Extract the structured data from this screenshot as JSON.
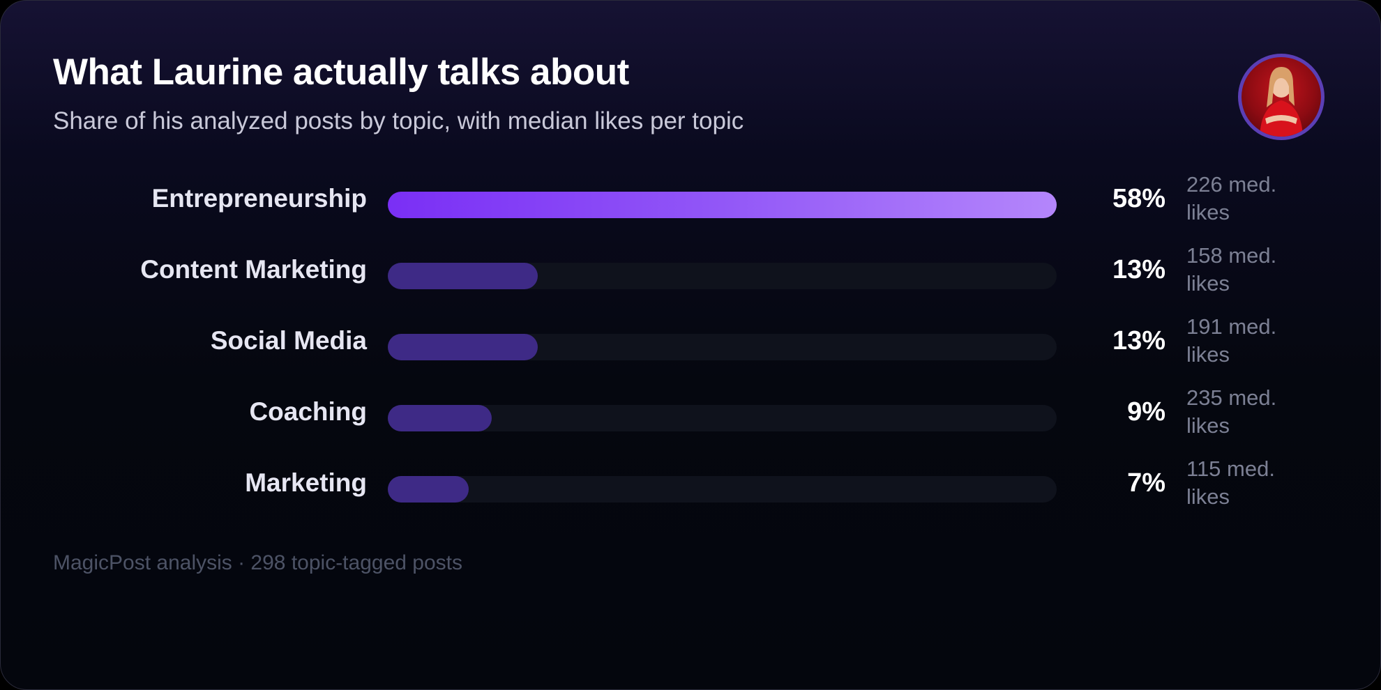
{
  "header": {
    "title": "What Laurine actually talks about",
    "subtitle": "Share of his analyzed posts by topic, with median likes per topic"
  },
  "avatar": {
    "icon": "profile-photo-icon",
    "ring_color": "#5b3fb5",
    "background_color": "#c2141c"
  },
  "colors": {
    "lead_bar_start": "#7a2ff5",
    "lead_bar_end": "#b486fb",
    "other_bar": "#3e2a86",
    "track": "#0f121c"
  },
  "chart_data": {
    "type": "bar",
    "orientation": "horizontal",
    "categories": [
      "Entrepreneurship",
      "Content Marketing",
      "Social Media",
      "Coaching",
      "Marketing"
    ],
    "values": [
      58,
      13,
      13,
      9,
      7
    ],
    "value_labels": [
      "58%",
      "13%",
      "13%",
      "9%",
      "7%"
    ],
    "median_likes": [
      226,
      158,
      191,
      235,
      115
    ],
    "median_likes_labels": [
      "226 med. likes",
      "158 med. likes",
      "191 med. likes",
      "235 med. likes",
      "115 med. likes"
    ],
    "unit": "%",
    "title": "What Laurine actually talks about",
    "subtitle": "Share of his analyzed posts by topic, with median likes per topic",
    "xlabel": "",
    "ylabel": "",
    "xlim": [
      0,
      58
    ],
    "grid": false,
    "legend": "none"
  },
  "footer": {
    "source": "MagicPost analysis · 298 topic-tagged posts"
  }
}
